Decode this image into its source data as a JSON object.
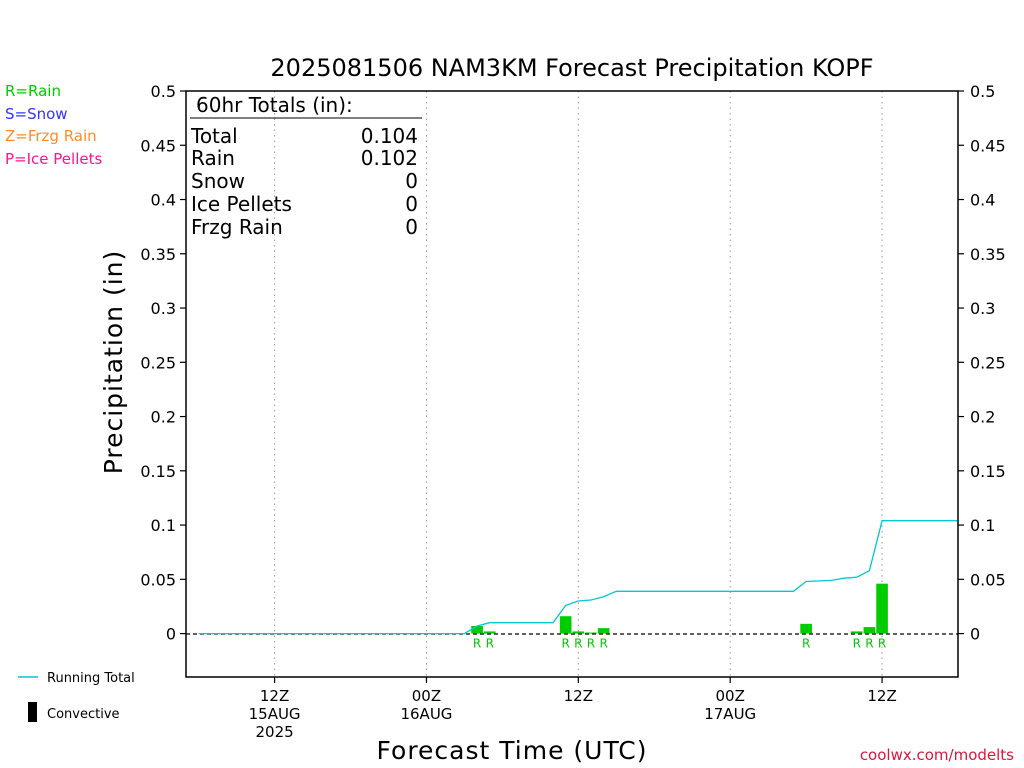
{
  "chart_data": {
    "type": "bar",
    "title": "2025081506 NAM3KM Forecast Precipitation KOPF",
    "xlabel": "Forecast Time (UTC)",
    "ylabel": "Precipitation (in)",
    "ylim": [
      -0.04,
      0.5
    ],
    "yticks": [
      0,
      0.05,
      0.1,
      0.15,
      0.2,
      0.25,
      0.3,
      0.35,
      0.4,
      0.45,
      0.5
    ],
    "ytick_labels": [
      "0",
      "0.05",
      "0.1",
      "0.15",
      "0.2",
      "0.25",
      "0.3",
      "0.35",
      "0.4",
      "0.45",
      "0.5"
    ],
    "x_unit": "forecast hour from 2025-08-15 06Z",
    "xlim": [
      -1,
      60
    ],
    "x_ticks": [
      {
        "x": 6,
        "lines": [
          "12Z",
          "15AUG",
          "2025"
        ]
      },
      {
        "x": 18,
        "lines": [
          "00Z",
          "16AUG"
        ]
      },
      {
        "x": 30,
        "lines": [
          "12Z"
        ]
      },
      {
        "x": 42,
        "lines": [
          "00Z",
          "17AUG"
        ]
      },
      {
        "x": 54,
        "lines": [
          "12Z"
        ]
      }
    ],
    "grid": "vertical dotted at tick marks",
    "bars": [
      {
        "x": 22,
        "value": 0.007,
        "type": "R"
      },
      {
        "x": 23,
        "value": 0.002,
        "type": "R"
      },
      {
        "x": 29,
        "value": 0.016,
        "type": "R"
      },
      {
        "x": 30,
        "value": 0.002,
        "type": "R"
      },
      {
        "x": 31,
        "value": 0.001,
        "type": "R"
      },
      {
        "x": 32,
        "value": 0.005,
        "type": "R"
      },
      {
        "x": 48,
        "value": 0.009,
        "type": "R"
      },
      {
        "x": 52,
        "value": 0.002,
        "type": "R"
      },
      {
        "x": 53,
        "value": 0.006,
        "type": "R"
      },
      {
        "x": 54,
        "value": 0.046,
        "type": "R"
      }
    ],
    "running_total": {
      "name": "Running Total",
      "points": [
        [
          0,
          0
        ],
        [
          21,
          0
        ],
        [
          22,
          0.007
        ],
        [
          23,
          0.01
        ],
        [
          28,
          0.01
        ],
        [
          29,
          0.026
        ],
        [
          30,
          0.03
        ],
        [
          31,
          0.031
        ],
        [
          32,
          0.034
        ],
        [
          33,
          0.039
        ],
        [
          47,
          0.039
        ],
        [
          48,
          0.048
        ],
        [
          50,
          0.049
        ],
        [
          51,
          0.051
        ],
        [
          52,
          0.052
        ],
        [
          53,
          0.058
        ],
        [
          54,
          0.104
        ],
        [
          60,
          0.104
        ]
      ]
    },
    "colors": {
      "rain": "#00cc00",
      "snow": "#3333ff",
      "frzg_rain": "#ff8c2a",
      "ice_pellets": "#ff1493",
      "running_total": "#00c8d2",
      "convective": "#000000",
      "credit": "#e0143c"
    }
  },
  "legend": {
    "rain": "R=Rain",
    "snow": "S=Snow",
    "frzg_rain": "Z=Frzg Rain",
    "ice_pellets": "P=Ice Pellets",
    "running_total": "Running Total",
    "convective": "Convective"
  },
  "totals": {
    "header": "60hr Totals (in):",
    "rows": [
      {
        "label": "Total",
        "value": "0.104"
      },
      {
        "label": "Rain",
        "value": "0.102"
      },
      {
        "label": "Snow",
        "value": "0"
      },
      {
        "label": "Ice Pellets",
        "value": "0"
      },
      {
        "label": "Frzg Rain",
        "value": "0"
      }
    ]
  },
  "credit": "coolwx.com/modelts"
}
